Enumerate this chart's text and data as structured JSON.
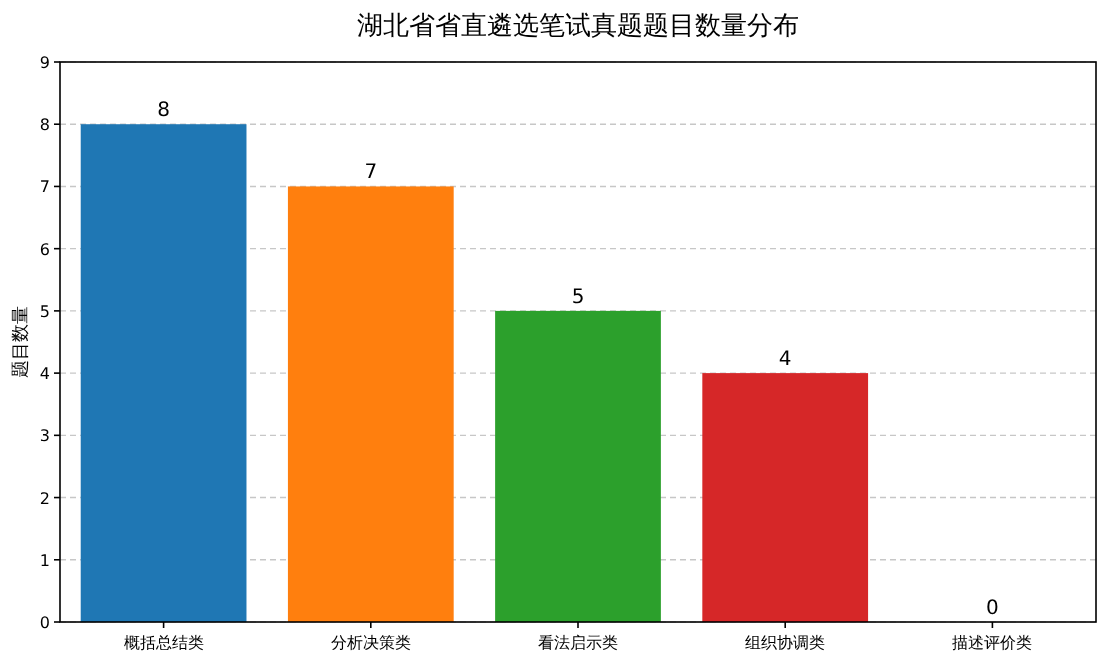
{
  "chart_data": {
    "type": "bar",
    "title": "湖北省省直遴选笔试真题题目数量分布",
    "ylabel": "题目数量",
    "categories": [
      "概括总结类",
      "分析决策类",
      "看法启示类",
      "组织协调类",
      "描述评价类"
    ],
    "values": [
      8,
      7,
      5,
      4,
      0
    ],
    "colors": [
      "#1f77b4",
      "#ff7f0e",
      "#2ca02c",
      "#d62728",
      "#9467bd"
    ],
    "ylim": [
      0,
      9
    ],
    "yticks": [
      0,
      1,
      2,
      3,
      4,
      5,
      6,
      7,
      8,
      9
    ],
    "grid": "y",
    "data_labels": true
  }
}
